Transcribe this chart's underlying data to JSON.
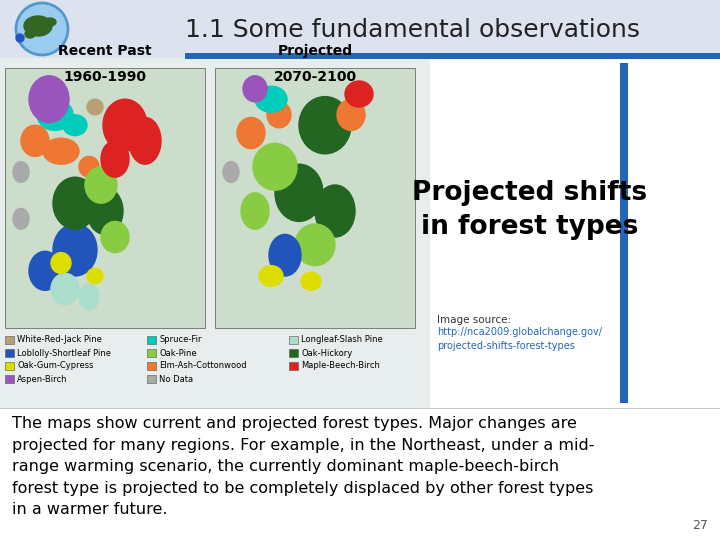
{
  "title": "1.1 Some fundamental observations",
  "title_fontsize": 18,
  "title_color": "#222222",
  "bg_color": "#dce3ef",
  "sidebar_title": "Projected shifts\nin forest types",
  "sidebar_title_fontsize": 19,
  "image_source_label": "Image source:",
  "image_source_url": "http://nca2009.globalchange.gov/\nprojected-shifts-forest-types",
  "body_text": "The maps show current and projected forest types. Major changes are\nprojected for many regions. For example, in the Northeast, under a mid-\nrange warming scenario, the currently dominant maple-beech-birch\nforest type is projected to be completely displaced by other forest types\nin a warmer future.",
  "body_text_fontsize": 11.5,
  "page_number": "27",
  "blue_bar_color": "#2266bb",
  "map_left_label1": "Recent Past",
  "map_left_label2": "1960-1990",
  "map_right_label1": "Projected",
  "map_right_label2": "2070-2100",
  "white_bg": "#ffffff",
  "legend_items": [
    [
      "White-Red-Jack Pine",
      "#b8a070"
    ],
    [
      "Spruce-Fir",
      "#00ccbb"
    ],
    [
      "Longleaf-Slash Pine",
      "#aaddcc"
    ],
    [
      "Loblolly-Shortleaf Pine",
      "#2255bb"
    ],
    [
      "Oak-Pine",
      "#88cc44"
    ],
    [
      "Oak-Hickory",
      "#226622"
    ],
    [
      "Oak-Gum-Cypress",
      "#dddd00"
    ],
    [
      "Elm-Ash-Cottonwood",
      "#ee7733"
    ],
    [
      "Maple-Beech-Birch",
      "#dd2222"
    ],
    [
      "Aspen-Birch",
      "#9955bb"
    ],
    [
      "No Data",
      "#aaaaaa"
    ]
  ]
}
